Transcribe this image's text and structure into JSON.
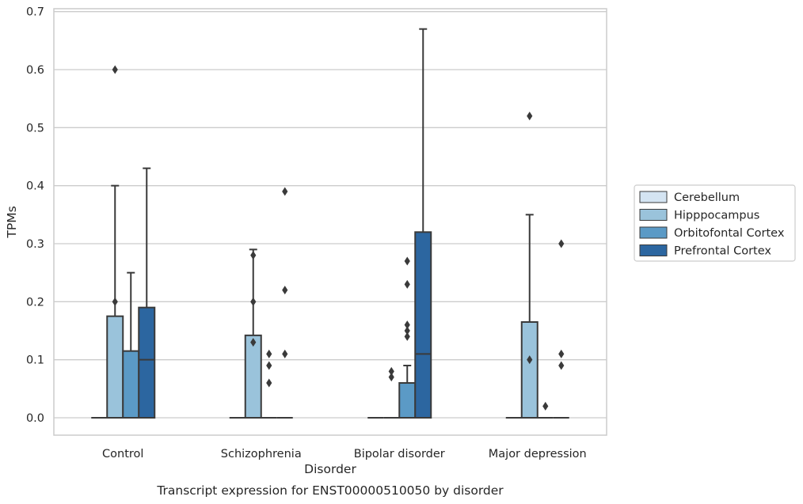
{
  "chart_data": {
    "type": "box",
    "title": "",
    "caption": "Transcript expression for ENST00000510050 by disorder",
    "xlabel": "Disorder",
    "ylabel": "TPMs",
    "ylim": [
      -0.03,
      0.705
    ],
    "yticks": [
      0.0,
      0.1,
      0.2,
      0.3,
      0.4,
      0.5,
      0.6,
      0.7
    ],
    "ytick_labels": [
      "0.0",
      "0.1",
      "0.2",
      "0.3",
      "0.4",
      "0.5",
      "0.6",
      "0.7"
    ],
    "grid": "horizontal",
    "legend_position": "right",
    "categories": [
      "Control",
      "Schizophrenia",
      "Bipolar disorder",
      "Major depression"
    ],
    "series": [
      {
        "name": "Cerebellum",
        "color": "#d4e4f2",
        "boxes": [
          {
            "q1": 0,
            "median": 0,
            "q3": 0,
            "whislo": 0,
            "whishi": 0,
            "fliers": []
          },
          {
            "q1": 0,
            "median": 0,
            "q3": 0,
            "whislo": 0,
            "whishi": 0,
            "fliers": []
          },
          {
            "q1": 0,
            "median": 0,
            "q3": 0,
            "whislo": 0,
            "whishi": 0,
            "fliers": []
          },
          {
            "q1": 0,
            "median": 0,
            "q3": 0,
            "whislo": 0,
            "whishi": 0,
            "fliers": []
          }
        ]
      },
      {
        "name": "Hipppocampus",
        "color": "#9ac3db",
        "boxes": [
          {
            "q1": 0,
            "median": 0,
            "q3": 0.175,
            "whislo": 0,
            "whishi": 0.4,
            "fliers": [
              0.2,
              0.6
            ]
          },
          {
            "q1": 0,
            "median": 0,
            "q3": 0.142,
            "whislo": 0,
            "whishi": 0.29,
            "fliers": [
              0.13,
              0.2,
              0.28
            ]
          },
          {
            "q1": 0,
            "median": 0,
            "q3": 0,
            "whislo": 0,
            "whishi": 0,
            "fliers": [
              0.07,
              0.08
            ]
          },
          {
            "q1": 0,
            "median": 0,
            "q3": 0.165,
            "whislo": 0,
            "whishi": 0.35,
            "fliers": [
              0.1,
              0.52
            ]
          }
        ]
      },
      {
        "name": "Orbitofontal Cortex",
        "color": "#5b9ac6",
        "boxes": [
          {
            "q1": 0,
            "median": 0,
            "q3": 0.115,
            "whislo": 0,
            "whishi": 0.25,
            "fliers": []
          },
          {
            "q1": 0,
            "median": 0,
            "q3": 0,
            "whislo": 0,
            "whishi": 0,
            "fliers": [
              0.06,
              0.09,
              0.11
            ]
          },
          {
            "q1": 0,
            "median": 0,
            "q3": 0.06,
            "whislo": 0,
            "whishi": 0.09,
            "fliers": [
              0.14,
              0.15,
              0.16,
              0.23,
              0.27
            ]
          },
          {
            "q1": 0,
            "median": 0,
            "q3": 0,
            "whislo": 0,
            "whishi": 0,
            "fliers": [
              0.02
            ]
          }
        ]
      },
      {
        "name": "Prefrontal Cortex",
        "color": "#2c66a0",
        "boxes": [
          {
            "q1": 0,
            "median": 0.1,
            "q3": 0.19,
            "whislo": 0,
            "whishi": 0.43,
            "fliers": []
          },
          {
            "q1": 0,
            "median": 0,
            "q3": 0,
            "whislo": 0,
            "whishi": 0,
            "fliers": [
              0.11,
              0.22,
              0.39
            ]
          },
          {
            "q1": 0,
            "median": 0.11,
            "q3": 0.32,
            "whislo": 0,
            "whishi": 0.67,
            "fliers": []
          },
          {
            "q1": 0,
            "median": 0,
            "q3": 0,
            "whislo": 0,
            "whishi": 0,
            "fliers": [
              0.09,
              0.11,
              0.3
            ]
          }
        ]
      }
    ]
  }
}
